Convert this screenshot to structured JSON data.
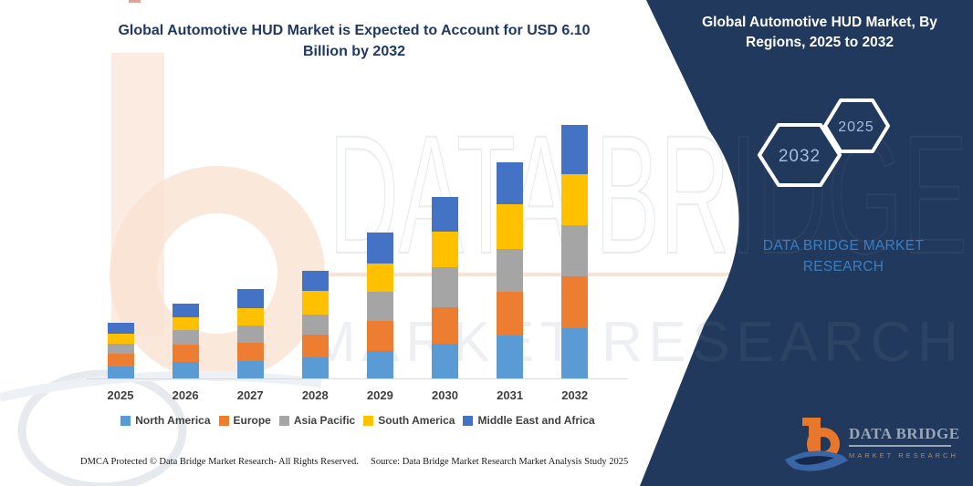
{
  "header_left": {
    "line1": "Global Automotive HUD Market is Expected to Account for USD 6.10",
    "line2": "Billion by 2032"
  },
  "panel": {
    "title_line1": "Global Automotive HUD Market, By",
    "title_line2": "Regions, 2025 to 2032",
    "hexagon_large_label": "2032",
    "hexagon_small_label": "2025",
    "brand_line1": "DATA BRIDGE MARKET",
    "brand_line2": "RESEARCH"
  },
  "logo": {
    "name": "DATA BRIDGE",
    "tagline": "MARKET RESEARCH"
  },
  "watermark": {
    "brand": "DATA BRIDGE",
    "tagline": "MARKET RESEARCH"
  },
  "footer": {
    "left": "DMCA Protected © Data Bridge Market Research- All Rights Reserved.",
    "right": "Source: Data Bridge Market Research Market Analysis Study 2025"
  },
  "chart_data": {
    "type": "bar",
    "stacked": true,
    "title": "Global Automotive HUD Market is Expected to Account for USD 6.10 Billion by 2032",
    "unit": "USD Billion",
    "categories": [
      "2025",
      "2026",
      "2027",
      "2028",
      "2029",
      "2030",
      "2031",
      "2032"
    ],
    "series": [
      {
        "name": "North America",
        "color": "#5B9BD5",
        "values": [
          0.29,
          0.4,
          0.42,
          0.51,
          0.66,
          0.84,
          1.03,
          1.21
        ]
      },
      {
        "name": "Europe",
        "color": "#ED7D31",
        "values": [
          0.31,
          0.42,
          0.44,
          0.55,
          0.73,
          0.88,
          1.06,
          1.25
        ]
      },
      {
        "name": "Asia Pacific",
        "color": "#A5A5A5",
        "values": [
          0.24,
          0.35,
          0.42,
          0.48,
          0.7,
          0.95,
          1.03,
          1.23
        ]
      },
      {
        "name": "South America",
        "color": "#FFC000",
        "values": [
          0.24,
          0.29,
          0.4,
          0.57,
          0.68,
          0.86,
          1.06,
          1.23
        ]
      },
      {
        "name": "Middle East and Africa",
        "color": "#4472C4",
        "values": [
          0.26,
          0.33,
          0.48,
          0.48,
          0.73,
          0.84,
          1.03,
          1.18
        ]
      }
    ],
    "totals": [
      1.34,
      1.79,
      2.16,
      2.59,
      3.5,
      4.37,
      5.21,
      6.1
    ],
    "xlabel": "",
    "ylabel": "",
    "ylim": [
      0,
      6.1
    ],
    "gridlines": false,
    "legend_position": "bottom"
  },
  "colors": {
    "navy_panel": "#21395C",
    "title_blue": "#1F3864",
    "brand_blue": "#3B7EC2",
    "hexagon_label": "#A6BCDE",
    "axis_line": "#D9D9D9",
    "axis_label": "#3F3F3F",
    "logo_orange": "#E8772E",
    "logo_swoosh_blue": "#3A66A8",
    "logo_name_gray": "#9AA7BA",
    "logo_tagline_tan": "#B08A5F"
  }
}
